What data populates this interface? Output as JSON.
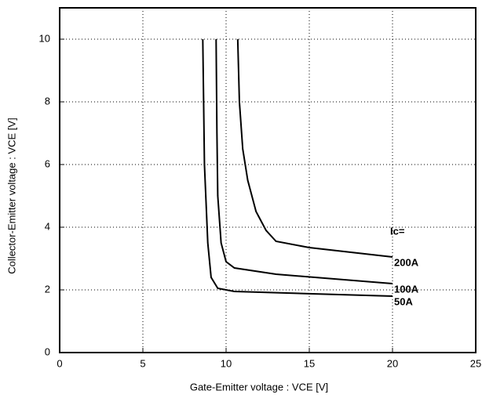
{
  "chart_data": {
    "type": "line",
    "x_label": "Gate-Emitter  voltage  :  VCE [V]",
    "y_label": "Collector-Emitter voltage  :   VCE [V]",
    "annotation": "Ic=",
    "xlim": [
      0,
      25
    ],
    "xticks": [
      0,
      5,
      10,
      15,
      20,
      25
    ],
    "ylim": [
      0,
      11
    ],
    "yticks": [
      0,
      2,
      4,
      6,
      8,
      10
    ],
    "grid": true,
    "series": [
      {
        "name": "200A",
        "color": "#000000",
        "x": [
          10.7,
          10.8,
          11,
          11.3,
          11.8,
          12.4,
          13,
          15,
          20
        ],
        "values": [
          10,
          8,
          6.5,
          5.5,
          4.5,
          3.9,
          3.55,
          3.35,
          3.05
        ]
      },
      {
        "name": "100A",
        "color": "#000000",
        "x": [
          9.4,
          9.45,
          9.5,
          9.7,
          10,
          10.5,
          13,
          20
        ],
        "values": [
          10,
          7,
          5,
          3.5,
          2.9,
          2.7,
          2.5,
          2.2
        ]
      },
      {
        "name": "50A",
        "color": "#000000",
        "x": [
          8.6,
          8.7,
          8.9,
          9.1,
          9.5,
          10.5,
          20
        ],
        "values": [
          10,
          6,
          3.5,
          2.4,
          2.05,
          1.95,
          1.8
        ]
      }
    ]
  }
}
